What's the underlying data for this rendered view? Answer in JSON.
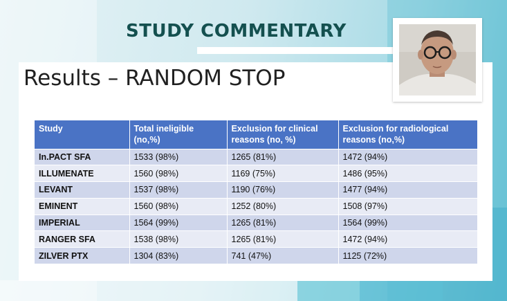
{
  "header": {
    "title": "STUDY COMMENTARY"
  },
  "slide": {
    "title": "Results – RANDOM STOP",
    "table": {
      "columns": [
        "Study",
        "Total ineligible (no,%)",
        "Exclusion for clinical reasons (no, %)",
        "Exclusion for radiological reasons (no,%)"
      ],
      "rows": [
        [
          "In.PACT SFA",
          "1533 (98%)",
          "1265 (81%)",
          "1472 (94%)"
        ],
        [
          "ILLUMENATE",
          "1560 (98%)",
          "1169 (75%)",
          "1486 (95%)"
        ],
        [
          "LEVANT",
          "1537 (98%)",
          "1190 (76%)",
          "1477 (94%)"
        ],
        [
          "EMINENT",
          "1560 (98%)",
          "1252 (80%)",
          "1508 (97%)"
        ],
        [
          "IMPERIAL",
          "1564 (99%)",
          "1265 (81%)",
          "1564 (99%)"
        ],
        [
          "RANGER SFA",
          "1538 (98%)",
          "1265 (81%)",
          "1472 (94%)"
        ],
        [
          "ZILVER PTX",
          "1304 (83%)",
          "741 (47%)",
          "1125 (72%)"
        ]
      ]
    }
  },
  "colors": {
    "header_text": "#14504f",
    "table_header_bg": "#4a73c5",
    "row_odd": "#cfd6eb",
    "row_even": "#e8ebf5"
  },
  "icons": {
    "presenter": "webcam-presenter-feed"
  }
}
